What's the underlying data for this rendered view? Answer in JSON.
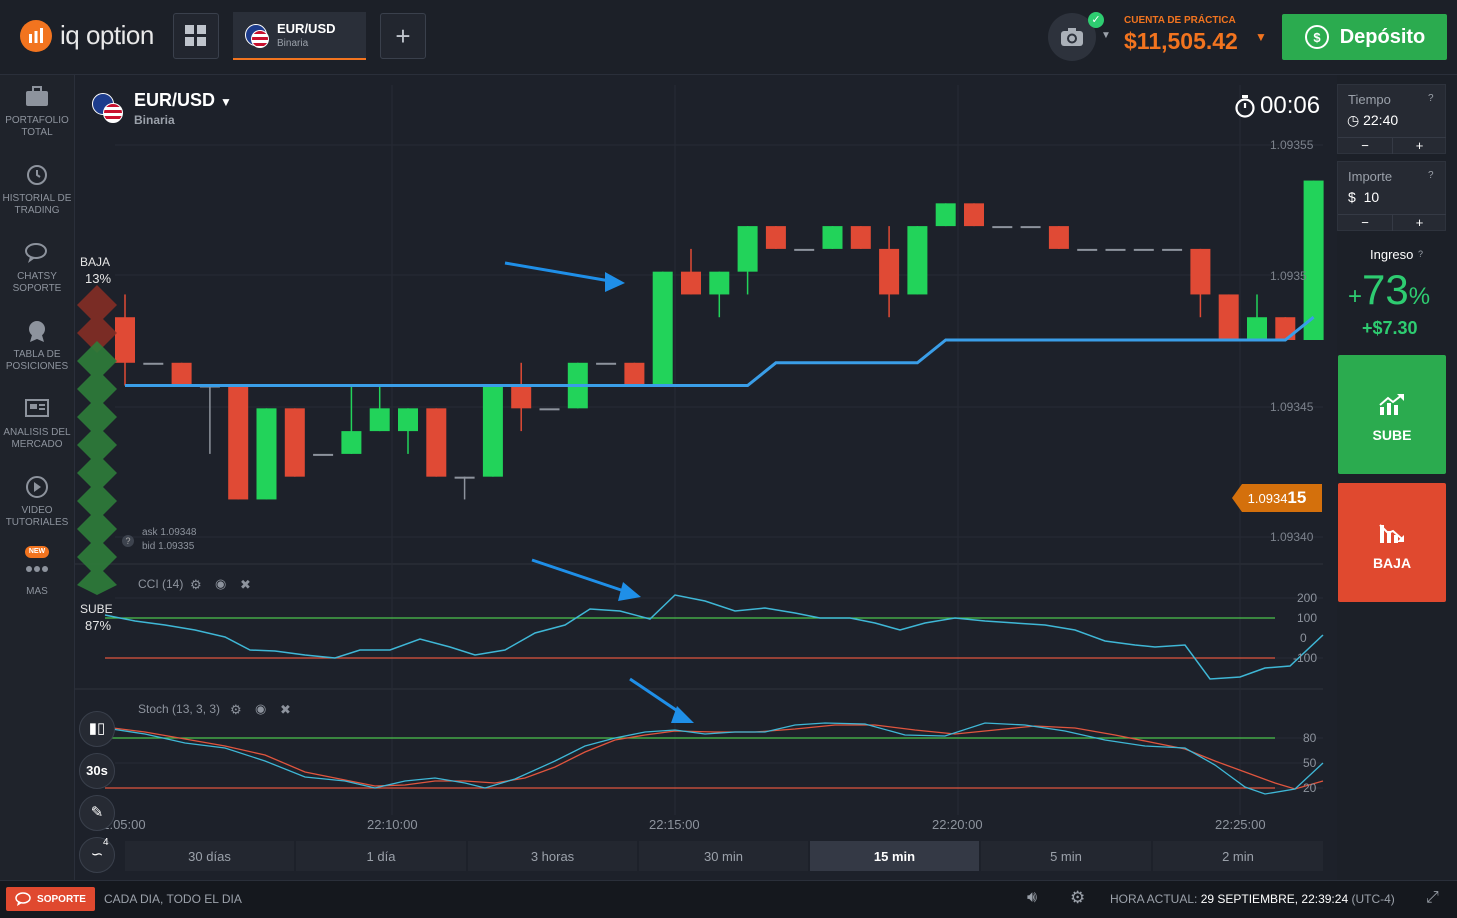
{
  "brand": {
    "name": "iq option"
  },
  "topbar": {
    "asset_tab": {
      "pair": "EUR/USD",
      "type": "Binaria"
    },
    "add_label": "+",
    "account": {
      "label": "CUENTA DE PRÁCTICA",
      "balance": "$11,505.42"
    },
    "deposit_label": "Depósito"
  },
  "sidebar": {
    "items": [
      {
        "line1": "PORTAFOLIO",
        "line2": "TOTAL",
        "icon": "briefcase-icon"
      },
      {
        "line1": "HISTORIAL DE",
        "line2": "TRADING",
        "icon": "history-icon"
      },
      {
        "line1": "CHATSY",
        "line2": "SOPORTE",
        "icon": "chat-icon"
      },
      {
        "line1": "TABLA DE",
        "line2": "POSICIONES",
        "icon": "leaderboard-icon"
      },
      {
        "line1": "ANALISIS DEL",
        "line2": "MERCADO",
        "icon": "news-icon"
      },
      {
        "line1": "VIDEO",
        "line2": "TUTORIALES",
        "icon": "play-icon"
      },
      {
        "line1": "MAS",
        "line2": "",
        "badge": "NEW",
        "icon": "more-icon"
      }
    ]
  },
  "chart_header": {
    "pair": "EUR/USD",
    "type": "Binaria",
    "timer": "00:06"
  },
  "sentiment": {
    "down_label": "BAJA",
    "down_pct": "13%",
    "up_label": "SUBE",
    "up_pct": "87%"
  },
  "quote": {
    "ask": "ask 1.09348",
    "bid": "bid 1.09335"
  },
  "current_price": {
    "main": "1.0934",
    "last": "15"
  },
  "indicators": {
    "cci": {
      "label": "CCI (14)"
    },
    "stoch": {
      "label": "Stoch (13, 3, 3)"
    }
  },
  "tools": {
    "period": "30s",
    "indicators_count": "4"
  },
  "timeframes": [
    "30 días",
    "1 día",
    "3 horas",
    "30 min",
    "15 min",
    "5 min",
    "2 min"
  ],
  "active_timeframe": "15 min",
  "right_panel": {
    "time": {
      "label": "Tiempo",
      "value": "22:40"
    },
    "amount": {
      "label": "Importe",
      "currency": "$",
      "value": "10"
    },
    "income": {
      "label": "Ingreso",
      "sign": "+",
      "pct": "73",
      "pct_sign": "%",
      "profit": "+$7.30"
    },
    "up_label": "SUBE",
    "down_label": "BAJA",
    "minus": "−",
    "plus": "+"
  },
  "bottombar": {
    "support_label": "SOPORTE",
    "schedule": "CADA DIA, TODO EL DIA",
    "time_label": "HORA ACTUAL:",
    "time_value": "29 SEPTIEMBRE, 22:39:24",
    "tz": "(UTC-4)"
  },
  "colors": {
    "up": "#2ecc71",
    "down": "#e74c3c",
    "accent": "#f2741f",
    "ma": "#3a9ee8",
    "cci_line": "#3fb7d6"
  },
  "chart_data": {
    "type": "candlestick",
    "price_ticks": [
      "1.09355",
      "1.0935",
      "1.09345",
      "1.09340"
    ],
    "cci_ticks": [
      "200",
      "100",
      "0",
      "-100"
    ],
    "stoch_ticks": [
      "80",
      "50",
      "20"
    ],
    "time_ticks": [
      "22:05:00",
      "22:10:00",
      "22:15:00",
      "22:20:00",
      "22:25:00"
    ],
    "candles": [
      {
        "o": 1.09348,
        "c": 1.09346,
        "h": 1.09349,
        "l": 1.09345
      },
      {
        "o": 1.09346,
        "c": 1.09346,
        "h": 1.09346,
        "l": 1.09346
      },
      {
        "o": 1.09346,
        "c": 1.09345,
        "h": 1.09346,
        "l": 1.09345
      },
      {
        "o": 1.09345,
        "c": 1.09345,
        "h": 1.09345,
        "l": 1.09342
      },
      {
        "o": 1.09345,
        "c": 1.0934,
        "h": 1.09345,
        "l": 1.0934
      },
      {
        "o": 1.0934,
        "c": 1.09344,
        "h": 1.09344,
        "l": 1.0934
      },
      {
        "o": 1.09344,
        "c": 1.09341,
        "h": 1.09344,
        "l": 1.09341
      },
      {
        "o": 1.09342,
        "c": 1.09342,
        "h": 1.09342,
        "l": 1.09342
      },
      {
        "o": 1.09342,
        "c": 1.09343,
        "h": 1.09345,
        "l": 1.09342
      },
      {
        "o": 1.09343,
        "c": 1.09344,
        "h": 1.09345,
        "l": 1.09343
      },
      {
        "o": 1.09343,
        "c": 1.09344,
        "h": 1.09344,
        "l": 1.09342
      },
      {
        "o": 1.09344,
        "c": 1.09341,
        "h": 1.09344,
        "l": 1.09341
      },
      {
        "o": 1.09341,
        "c": 1.09341,
        "h": 1.09341,
        "l": 1.0934
      },
      {
        "o": 1.09341,
        "c": 1.09345,
        "h": 1.09345,
        "l": 1.09341
      },
      {
        "o": 1.09345,
        "c": 1.09344,
        "h": 1.09346,
        "l": 1.09343
      },
      {
        "o": 1.09344,
        "c": 1.09344,
        "h": 1.09344,
        "l": 1.09344
      },
      {
        "o": 1.09344,
        "c": 1.09346,
        "h": 1.09346,
        "l": 1.09344
      },
      {
        "o": 1.09346,
        "c": 1.09346,
        "h": 1.09346,
        "l": 1.09346
      },
      {
        "o": 1.09346,
        "c": 1.09345,
        "h": 1.09346,
        "l": 1.09345
      },
      {
        "o": 1.09345,
        "c": 1.0935,
        "h": 1.0935,
        "l": 1.09345
      },
      {
        "o": 1.0935,
        "c": 1.09349,
        "h": 1.09351,
        "l": 1.09349
      },
      {
        "o": 1.09349,
        "c": 1.0935,
        "h": 1.0935,
        "l": 1.09348
      },
      {
        "o": 1.0935,
        "c": 1.09352,
        "h": 1.09352,
        "l": 1.09349
      },
      {
        "o": 1.09352,
        "c": 1.09351,
        "h": 1.09352,
        "l": 1.09351
      },
      {
        "o": 1.09351,
        "c": 1.09351,
        "h": 1.09351,
        "l": 1.09351
      },
      {
        "o": 1.09351,
        "c": 1.09352,
        "h": 1.09352,
        "l": 1.09351
      },
      {
        "o": 1.09352,
        "c": 1.09351,
        "h": 1.09352,
        "l": 1.09351
      },
      {
        "o": 1.09351,
        "c": 1.09349,
        "h": 1.09352,
        "l": 1.09348
      },
      {
        "o": 1.09349,
        "c": 1.09352,
        "h": 1.09352,
        "l": 1.09349
      },
      {
        "o": 1.09352,
        "c": 1.09353,
        "h": 1.09353,
        "l": 1.09352
      },
      {
        "o": 1.09353,
        "c": 1.09352,
        "h": 1.09353,
        "l": 1.09352
      },
      {
        "o": 1.09352,
        "c": 1.09352,
        "h": 1.09352,
        "l": 1.09352
      },
      {
        "o": 1.09352,
        "c": 1.09352,
        "h": 1.09352,
        "l": 1.09352
      },
      {
        "o": 1.09352,
        "c": 1.09351,
        "h": 1.09352,
        "l": 1.09351
      },
      {
        "o": 1.09351,
        "c": 1.09351,
        "h": 1.09351,
        "l": 1.09351
      },
      {
        "o": 1.09351,
        "c": 1.09351,
        "h": 1.09351,
        "l": 1.09351
      },
      {
        "o": 1.09351,
        "c": 1.09351,
        "h": 1.09351,
        "l": 1.09351
      },
      {
        "o": 1.09351,
        "c": 1.09351,
        "h": 1.09351,
        "l": 1.09351
      },
      {
        "o": 1.09351,
        "c": 1.09349,
        "h": 1.09351,
        "l": 1.09348
      },
      {
        "o": 1.09349,
        "c": 1.09347,
        "h": 1.09349,
        "l": 1.09347
      },
      {
        "o": 1.09347,
        "c": 1.09348,
        "h": 1.09349,
        "l": 1.09347
      },
      {
        "o": 1.09348,
        "c": 1.09347,
        "h": 1.09348,
        "l": 1.09347
      },
      {
        "o": 1.09347,
        "c": 1.09354,
        "h": 1.09354,
        "l": 1.09347
      }
    ],
    "ma": [
      1.09345,
      1.09345,
      1.09345,
      1.09345,
      1.09345,
      1.09345,
      1.09345,
      1.09345,
      1.09345,
      1.09345,
      1.09345,
      1.09345,
      1.09345,
      1.09345,
      1.09345,
      1.09345,
      1.09345,
      1.09345,
      1.09345,
      1.09345,
      1.09345,
      1.09345,
      1.09345,
      1.09346,
      1.09346,
      1.09346,
      1.09346,
      1.09346,
      1.09346,
      1.09347,
      1.09347,
      1.09347,
      1.09347,
      1.09347,
      1.09347,
      1.09347,
      1.09347,
      1.09347,
      1.09347,
      1.09347,
      1.09347,
      1.09347,
      1.09348
    ]
  }
}
